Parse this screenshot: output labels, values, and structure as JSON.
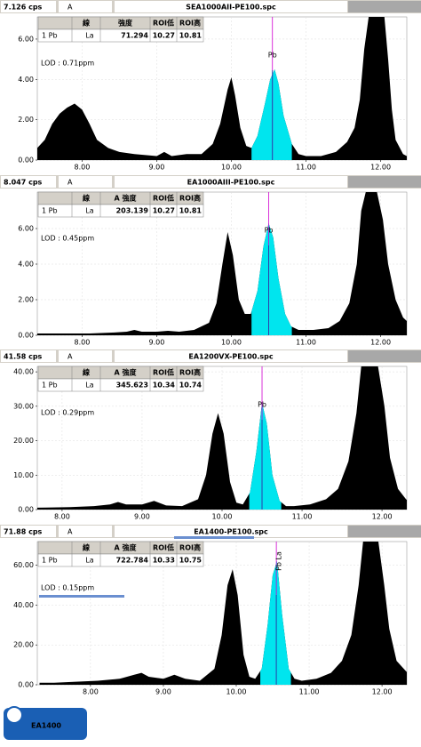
{
  "chart_data": [
    {
      "type": "area",
      "cps": "7.126 cps",
      "channel": "A",
      "file": "SEA1000AII-PE100.spc",
      "table": {
        "headers": [
          "線",
          "強度",
          "ROI低",
          "ROI高"
        ],
        "row": [
          "1 Pb",
          "La",
          71.294,
          10.27,
          10.81
        ]
      },
      "lod": "LOD : 0.71ppm",
      "markers": [
        {
          "label": "Pb",
          "x": 10.55
        }
      ],
      "x": [
        7.4,
        7.5,
        7.6,
        7.7,
        7.8,
        7.9,
        8.0,
        8.1,
        8.2,
        8.35,
        8.5,
        8.7,
        9.0,
        9.1,
        9.2,
        9.4,
        9.6,
        9.75,
        9.85,
        9.95,
        10.0,
        10.05,
        10.12,
        10.2,
        10.27,
        10.35,
        10.45,
        10.52,
        10.58,
        10.63,
        10.7,
        10.81,
        10.9,
        11.0,
        11.2,
        11.4,
        11.55,
        11.65,
        11.72,
        11.78,
        11.84,
        11.9,
        12.05,
        12.1,
        12.15,
        12.2,
        12.3,
        12.35
      ],
      "values": [
        0.6,
        1.0,
        1.8,
        2.3,
        2.6,
        2.8,
        2.5,
        1.8,
        1.0,
        0.6,
        0.4,
        0.3,
        0.2,
        0.4,
        0.2,
        0.3,
        0.3,
        0.8,
        1.8,
        3.5,
        4.1,
        3.2,
        1.6,
        0.7,
        0.6,
        1.2,
        2.8,
        4.0,
        4.5,
        3.8,
        2.2,
        0.8,
        0.3,
        0.2,
        0.2,
        0.4,
        0.9,
        1.6,
        3.0,
        5.5,
        7.1,
        7.1,
        7.1,
        5.0,
        2.5,
        1.0,
        0.3,
        0.2
      ],
      "color": "#000000",
      "roi_color": "#00e5ee",
      "grid": true,
      "xlim": [
        7.4,
        12.35
      ],
      "ylim": [
        0,
        7.1
      ],
      "xticks": [
        {
          "value": 8,
          "label": "8.00"
        },
        {
          "value": 9,
          "label": "9.00"
        },
        {
          "value": 10,
          "label": "10.00"
        },
        {
          "value": 11,
          "label": "11.00"
        },
        {
          "value": 12,
          "label": "12.00"
        }
      ],
      "yticks": [
        {
          "value": 0,
          "label": "0.00"
        },
        {
          "value": 2,
          "label": "2.00"
        },
        {
          "value": 4,
          "label": "4.00"
        },
        {
          "value": 6,
          "label": "6.00"
        }
      ]
    },
    {
      "type": "area",
      "cps": "8.047 cps",
      "channel": "A",
      "file": "EA1000AIII-PE100.spc",
      "table": {
        "headers": [
          "線",
          "A 強度",
          "ROI低",
          "ROI高"
        ],
        "row": [
          "1 Pb",
          "La",
          203.139,
          10.27,
          10.81
        ]
      },
      "lod": "LOD : 0.45ppm",
      "markers": [
        {
          "label": "Pb",
          "x": 10.5
        }
      ],
      "x": [
        7.3,
        7.5,
        7.8,
        8.1,
        8.4,
        8.6,
        8.7,
        8.8,
        9.0,
        9.15,
        9.3,
        9.5,
        9.7,
        9.8,
        9.88,
        9.95,
        10.02,
        10.1,
        10.18,
        10.26,
        10.35,
        10.43,
        10.5,
        10.56,
        10.63,
        10.72,
        10.8,
        10.9,
        11.1,
        11.3,
        11.45,
        11.58,
        11.68,
        11.74,
        11.8,
        11.95,
        12.03,
        12.1,
        12.2,
        12.3,
        12.35
      ],
      "values": [
        0.1,
        0.1,
        0.1,
        0.1,
        0.15,
        0.2,
        0.3,
        0.2,
        0.2,
        0.25,
        0.2,
        0.3,
        0.7,
        1.8,
        4.0,
        5.8,
        4.5,
        2.0,
        1.2,
        1.2,
        2.5,
        5.0,
        6.3,
        5.5,
        3.2,
        1.2,
        0.5,
        0.3,
        0.3,
        0.4,
        0.8,
        1.8,
        4.0,
        7.0,
        8.05,
        8.05,
        6.5,
        4.0,
        2.0,
        1.0,
        0.8
      ],
      "color": "#000000",
      "roi_color": "#00e5ee",
      "grid": true,
      "xlim": [
        7.4,
        12.35
      ],
      "ylim": [
        0,
        8.05
      ],
      "xticks": [
        {
          "value": 8,
          "label": "8.00"
        },
        {
          "value": 9,
          "label": "9.00"
        },
        {
          "value": 10,
          "label": "10.00"
        },
        {
          "value": 11,
          "label": "11.00"
        },
        {
          "value": 12,
          "label": "12.00"
        }
      ],
      "yticks": [
        {
          "value": 0,
          "label": "0.00"
        },
        {
          "value": 2,
          "label": "2.00"
        },
        {
          "value": 4,
          "label": "4.00"
        },
        {
          "value": 6,
          "label": "6.00"
        }
      ]
    },
    {
      "type": "area",
      "cps": "41.58 cps",
      "channel": "A",
      "file": "EA1200VX-PE100.spc",
      "table": {
        "headers": [
          "線",
          "A 強度",
          "ROI低",
          "ROI高"
        ],
        "row": [
          "1 Pb",
          "La",
          345.623,
          10.34,
          10.74
        ]
      },
      "lod": "LOD : 0.29ppm",
      "markers": [
        {
          "label": "Pb",
          "x": 10.5
        }
      ],
      "x": [
        7.3,
        7.5,
        7.8,
        8.1,
        8.4,
        8.6,
        8.7,
        8.8,
        9.0,
        9.15,
        9.3,
        9.5,
        9.7,
        9.8,
        9.88,
        9.95,
        10.02,
        10.1,
        10.18,
        10.26,
        10.35,
        10.43,
        10.5,
        10.56,
        10.63,
        10.72,
        10.8,
        10.9,
        11.1,
        11.3,
        11.45,
        11.58,
        11.68,
        11.74,
        11.8,
        11.95,
        12.03,
        12.1,
        12.2,
        12.3,
        12.35
      ],
      "values": [
        0.5,
        0.5,
        0.6,
        0.7,
        1.0,
        1.5,
        2.2,
        1.5,
        1.5,
        2.5,
        1.2,
        1.0,
        3.0,
        10,
        22,
        28,
        22,
        8,
        2.0,
        1.5,
        5,
        17,
        31,
        25,
        10,
        2.5,
        1.0,
        1.0,
        1.5,
        3.0,
        6,
        14,
        28,
        41.58,
        41.58,
        41.58,
        30,
        15,
        6,
        3,
        2
      ],
      "color": "#000000",
      "roi_color": "#00e5ee",
      "grid": true,
      "xlim": [
        7.69,
        12.31
      ],
      "ylim": [
        0,
        41.58
      ],
      "xticks": [
        {
          "value": 8,
          "label": "8.00"
        },
        {
          "value": 9,
          "label": "9.00"
        },
        {
          "value": 10,
          "label": "10.00"
        },
        {
          "value": 11,
          "label": "11.00"
        },
        {
          "value": 12,
          "label": "12.00"
        }
      ],
      "yticks": [
        {
          "value": 0,
          "label": "0.00"
        },
        {
          "value": 10,
          "label": "10.00"
        },
        {
          "value": 20,
          "label": "20.00"
        },
        {
          "value": 30,
          "label": "30.00"
        },
        {
          "value": 40,
          "label": "40.00"
        }
      ]
    },
    {
      "type": "area",
      "cps": "71.88 cps",
      "channel": "A",
      "file": "EA1400-PE100.spc",
      "table": {
        "headers": [
          "線",
          "A 強度",
          "ROI低",
          "ROI高"
        ],
        "row": [
          "1 Pb",
          "La",
          722.784,
          10.33,
          10.75
        ]
      },
      "lod": "LOD : 0.15ppm",
      "markers": [
        {
          "label": "Pb La",
          "x": 10.55
        }
      ],
      "highlight": true,
      "x": [
        7.3,
        7.5,
        7.8,
        8.1,
        8.4,
        8.6,
        8.7,
        8.8,
        9.0,
        9.15,
        9.3,
        9.5,
        9.7,
        9.8,
        9.88,
        9.95,
        10.02,
        10.1,
        10.18,
        10.26,
        10.35,
        10.43,
        10.5,
        10.56,
        10.63,
        10.72,
        10.8,
        10.9,
        11.1,
        11.3,
        11.45,
        11.58,
        11.68,
        11.74,
        11.8,
        11.95,
        12.03,
        12.1,
        12.2,
        12.3,
        12.35
      ],
      "values": [
        1,
        1,
        1.5,
        2,
        3,
        5,
        6,
        4,
        3,
        5,
        3,
        2,
        8,
        25,
        50,
        58,
        45,
        15,
        4,
        3,
        8,
        30,
        55,
        62,
        35,
        8,
        3,
        2,
        3,
        6,
        12,
        25,
        50,
        71.88,
        71.88,
        71.88,
        50,
        28,
        12,
        8,
        6
      ],
      "color": "#000000",
      "roi_color": "#00e5ee",
      "grid": true,
      "xlim": [
        7.27,
        12.34
      ],
      "ylim": [
        0,
        71.88
      ],
      "xticks": [
        {
          "value": 8,
          "label": "8.00"
        },
        {
          "value": 9,
          "label": "9.00"
        },
        {
          "value": 10,
          "label": "10.00"
        },
        {
          "value": 11,
          "label": "11.00"
        },
        {
          "value": 12,
          "label": "12.00"
        }
      ],
      "yticks": [
        {
          "value": 0,
          "label": "0.00"
        },
        {
          "value": 20,
          "label": "20.00"
        },
        {
          "value": 40,
          "label": "40.00"
        },
        {
          "value": 60,
          "label": "60.00"
        }
      ]
    }
  ],
  "logo": "EA1400"
}
